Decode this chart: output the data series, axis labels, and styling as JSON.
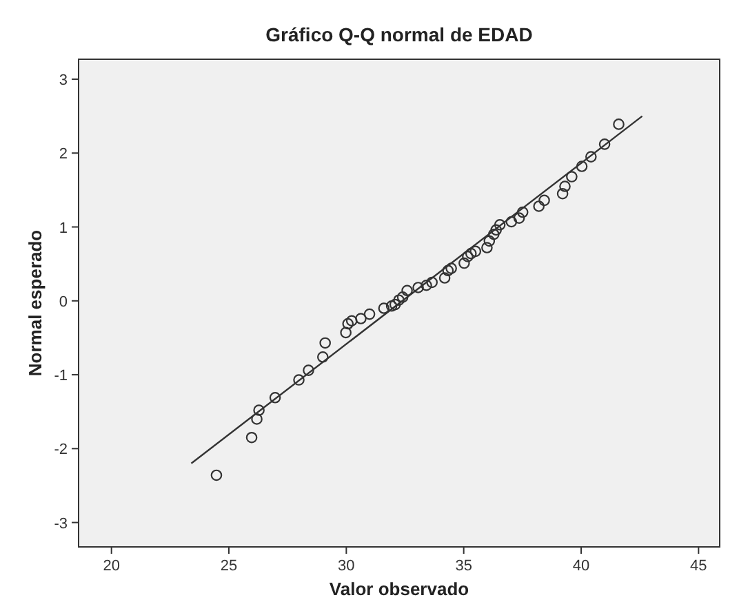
{
  "chart_data": {
    "type": "scatter",
    "title": "Gráfico Q-Q normal de EDAD",
    "xlabel": "Valor observado",
    "ylabel": "Normal esperado",
    "xlim": [
      18.6,
      45.9
    ],
    "ylim": [
      -3.33,
      3.27
    ],
    "xticks": [
      20,
      25,
      30,
      35,
      40,
      45
    ],
    "yticks": [
      -3,
      -2,
      -1,
      0,
      1,
      2,
      3
    ],
    "grid": false,
    "series": [
      {
        "marker": "circle",
        "color": "#333333",
        "x": [
          24.47,
          25.97,
          26.19,
          26.28,
          26.97,
          27.98,
          28.39,
          29.0,
          29.1,
          29.98,
          30.07,
          30.23,
          30.62,
          30.99,
          31.6,
          31.93,
          32.08,
          32.24,
          32.4,
          32.59,
          33.06,
          33.41,
          33.65,
          34.19,
          34.33,
          34.47,
          35.02,
          35.17,
          35.31,
          35.5,
          35.99,
          36.09,
          36.28,
          36.38,
          36.54,
          37.03,
          37.36,
          37.51,
          38.2,
          38.43,
          39.21,
          39.31,
          39.6,
          40.03,
          40.42,
          41.0,
          41.6
        ],
        "values": [
          -2.36,
          -1.85,
          -1.6,
          -1.48,
          -1.31,
          -1.07,
          -0.94,
          -0.76,
          -0.57,
          -0.43,
          -0.31,
          -0.27,
          -0.24,
          -0.18,
          -0.1,
          -0.07,
          -0.05,
          0.01,
          0.05,
          0.14,
          0.18,
          0.21,
          0.25,
          0.31,
          0.41,
          0.44,
          0.51,
          0.6,
          0.64,
          0.67,
          0.72,
          0.81,
          0.9,
          0.96,
          1.03,
          1.07,
          1.12,
          1.2,
          1.28,
          1.36,
          1.45,
          1.55,
          1.68,
          1.82,
          1.95,
          2.12,
          2.39
        ]
      },
      {
        "type": "line",
        "color": "#333333",
        "x": [
          23.4,
          42.6
        ],
        "values": [
          -2.2,
          2.5
        ]
      }
    ]
  }
}
